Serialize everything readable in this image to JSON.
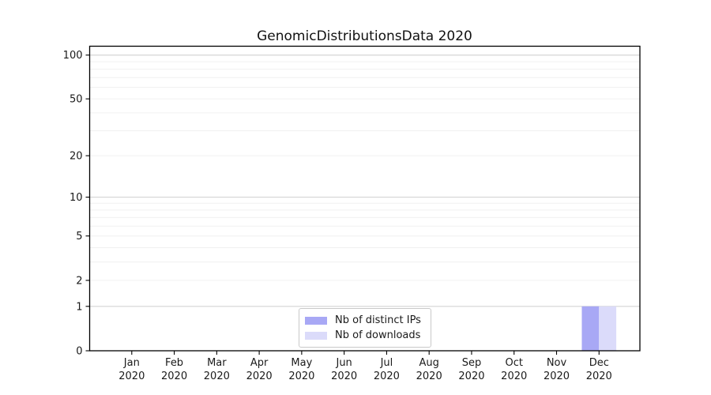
{
  "chart_data": {
    "type": "bar",
    "title": "GenomicDistributionsData 2020",
    "categories": [
      "Jan",
      "Feb",
      "Mar",
      "Apr",
      "May",
      "Jun",
      "Jul",
      "Aug",
      "Sep",
      "Oct",
      "Nov",
      "Dec"
    ],
    "x_tick_year": "2020",
    "series": [
      {
        "name": "Nb of distinct IPs",
        "color": "#a8a8f5",
        "values": [
          0,
          0,
          0,
          0,
          0,
          0,
          0,
          0,
          0,
          0,
          0,
          1
        ]
      },
      {
        "name": "Nb of downloads",
        "color": "#dbdbfa",
        "values": [
          0,
          0,
          0,
          0,
          0,
          0,
          0,
          0,
          0,
          0,
          0,
          1
        ]
      }
    ],
    "y_axis": {
      "scale": "log10(1+y)",
      "ticks": [
        0,
        1,
        2,
        5,
        10,
        20,
        50,
        100
      ],
      "major_gridlines": [
        1,
        10,
        100
      ],
      "minor_gridlines": [
        2,
        3,
        4,
        5,
        6,
        7,
        8,
        9,
        20,
        30,
        40,
        50,
        60,
        70,
        80,
        90
      ],
      "top_value": 115,
      "range_bottom": 0
    },
    "legend": {
      "position": "inside-bottom-center"
    },
    "grid": true
  },
  "colors": {
    "axis": "#000000",
    "grid_major": "#d4d4d4",
    "grid_minor": "#f0f0f0",
    "tick_text": "#1a1a1a",
    "background": "#ffffff"
  }
}
